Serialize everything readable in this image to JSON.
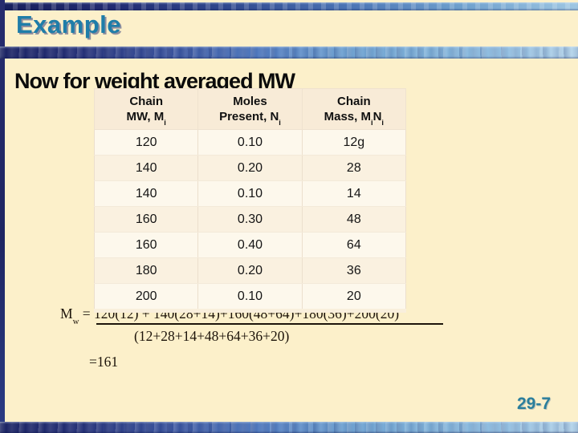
{
  "slide": {
    "title": "Example",
    "heading": "Now for weight averaged MW",
    "page_number": "29-7"
  },
  "table": {
    "columns": [
      {
        "l1": "Chain",
        "l2a": "MW, M",
        "l2asub": "i",
        "l2b": "",
        "l2bsub": ""
      },
      {
        "l1": "Moles",
        "l2a": "Present, N",
        "l2asub": "i",
        "l2b": "",
        "l2bsub": ""
      },
      {
        "l1": "Chain",
        "l2a": "Mass, M",
        "l2asub": "i",
        "l2b": "N",
        "l2bsub": "i"
      }
    ],
    "rows": [
      [
        "120",
        "0.10",
        "12g"
      ],
      [
        "140",
        "0.20",
        "28"
      ],
      [
        "140",
        "0.10",
        "14"
      ],
      [
        "160",
        "0.30",
        "48"
      ],
      [
        "160",
        "0.40",
        "64"
      ],
      [
        "180",
        "0.20",
        "36"
      ],
      [
        "200",
        "0.10",
        "20"
      ]
    ]
  },
  "formula": {
    "lhs_base": "M",
    "lhs_sub": "w",
    "equals": " = ",
    "numerator": "120(12) + 140(28+14)+160(48+64)+180(36)+200(20)",
    "denominator": "(12+28+14+48+64+36+20)",
    "result": "=161"
  },
  "colors": {
    "background_cream": "#FCF0CA",
    "title_teal": "#1F7DA9",
    "page_number_teal": "#2A7E9C",
    "stripe_navy": "#1B2363",
    "stripe_light_blue": "#7FB3DA",
    "heading_black": "#0B0B0B"
  }
}
